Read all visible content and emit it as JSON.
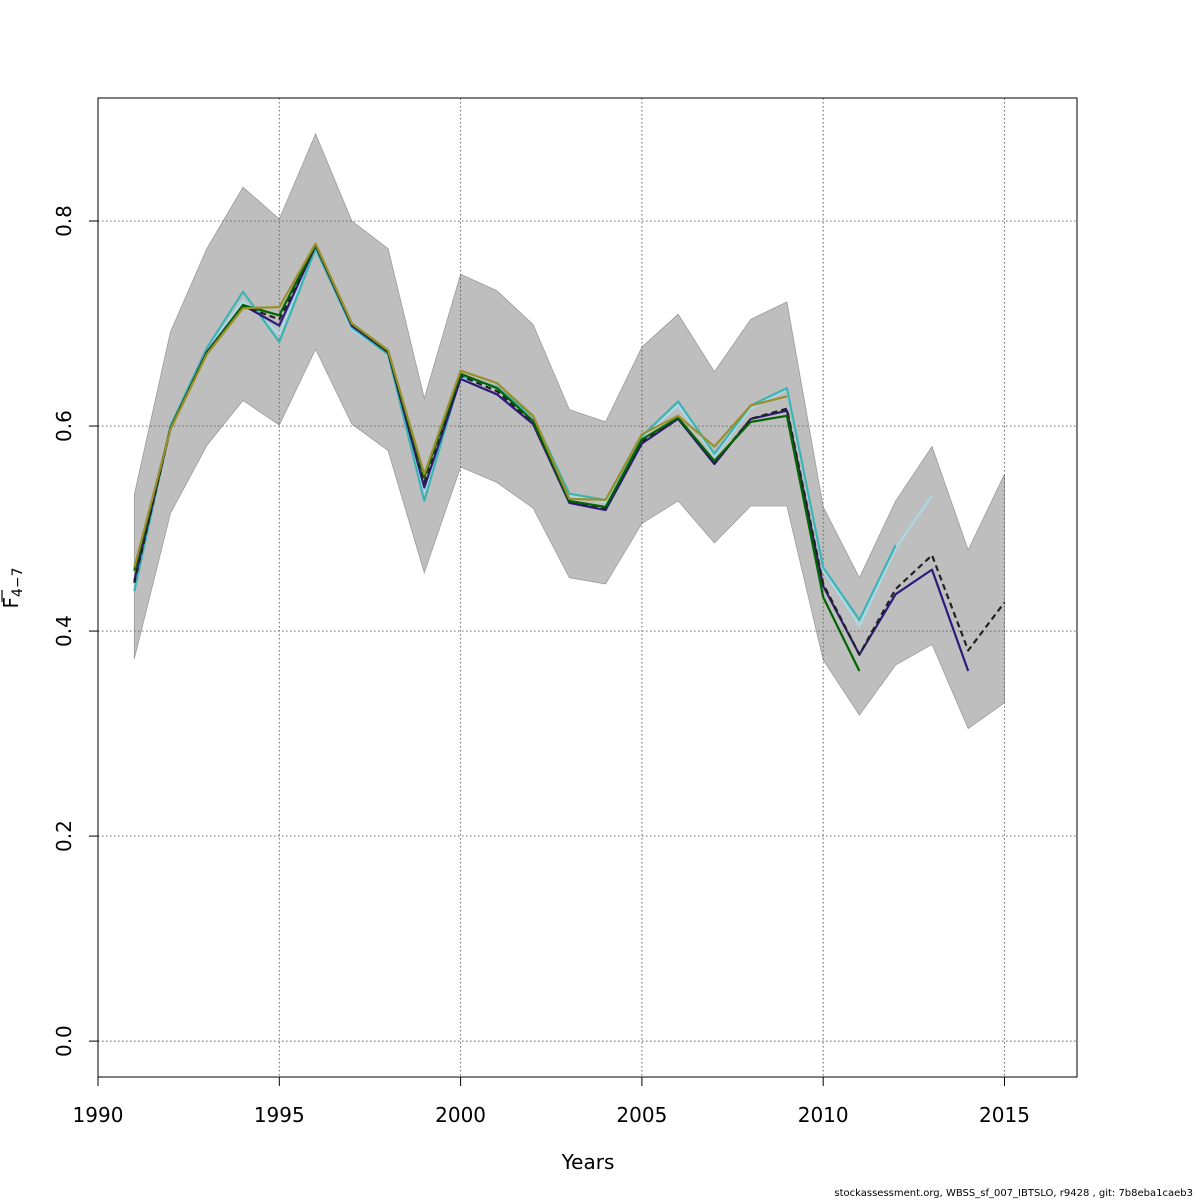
{
  "chart_data": {
    "type": "line",
    "xlabel": "Years",
    "ylabel_main": "F",
    "ylabel_sub": "4−7",
    "xlim": [
      1990,
      2017
    ],
    "ylim": [
      -0.035,
      0.92
    ],
    "x_ticks": [
      1990,
      1995,
      2000,
      2005,
      2010,
      2015
    ],
    "y_ticks": [
      0.0,
      0.2,
      0.4,
      0.6,
      0.8
    ],
    "x_tick_labels": [
      "1990",
      "1995",
      "2000",
      "2005",
      "2010",
      "2015"
    ],
    "y_tick_labels": [
      "0.0",
      "0.2",
      "0.4",
      "0.6",
      "0.8"
    ],
    "grid": true,
    "band": {
      "color": "#bebebe",
      "x": [
        1991,
        1992,
        1993,
        1994,
        1995,
        1996,
        1997,
        1998,
        1999,
        2000,
        2001,
        2002,
        2003,
        2004,
        2005,
        2006,
        2007,
        2008,
        2009,
        2010,
        2011,
        2012,
        2013,
        2014,
        2015
      ],
      "upper": [
        0.533,
        0.692,
        0.773,
        0.833,
        0.802,
        0.885,
        0.8,
        0.773,
        0.627,
        0.748,
        0.732,
        0.699,
        0.616,
        0.604,
        0.677,
        0.709,
        0.653,
        0.704,
        0.721,
        0.521,
        0.452,
        0.527,
        0.58,
        0.479,
        0.553
      ],
      "lower": [
        0.373,
        0.515,
        0.581,
        0.625,
        0.601,
        0.675,
        0.602,
        0.576,
        0.457,
        0.56,
        0.545,
        0.52,
        0.452,
        0.446,
        0.505,
        0.527,
        0.486,
        0.522,
        0.522,
        0.372,
        0.318,
        0.367,
        0.387,
        0.305,
        0.33
      ]
    },
    "series": [
      {
        "color": "#add8e6",
        "width": 2.2,
        "dash": "",
        "x": [
          1991,
          1992,
          1993,
          1994,
          1995,
          1996,
          1997,
          1998,
          1999,
          2000,
          2001,
          2002,
          2003,
          2004,
          2005,
          2006,
          2007,
          2008,
          2009,
          2010,
          2011,
          2012,
          2013
        ],
        "y": [
          0.443,
          0.6,
          0.674,
          0.722,
          0.69,
          0.775,
          0.694,
          0.671,
          0.536,
          0.648,
          0.637,
          0.607,
          0.532,
          0.526,
          0.589,
          0.62,
          0.571,
          0.617,
          0.636,
          0.46,
          0.405,
          0.481,
          0.532
        ]
      },
      {
        "color": "#3cb4b4",
        "width": 2.2,
        "dash": "",
        "x": [
          1991,
          1992,
          1993,
          1994,
          1995,
          1996,
          1997,
          1998,
          1999,
          2000,
          2001,
          2002,
          2003,
          2004,
          2005,
          2006,
          2007,
          2008,
          2009,
          2010,
          2011,
          2012
        ],
        "y": [
          0.439,
          0.6,
          0.676,
          0.731,
          0.682,
          0.773,
          0.696,
          0.67,
          0.527,
          0.649,
          0.638,
          0.609,
          0.534,
          0.528,
          0.59,
          0.624,
          0.573,
          0.62,
          0.637,
          0.462,
          0.411,
          0.484
        ]
      },
      {
        "color": "#2e1a7a",
        "width": 2.2,
        "dash": "",
        "x": [
          1991,
          1992,
          1993,
          1994,
          1995,
          1996,
          1997,
          1998,
          1999,
          2000,
          2001,
          2002,
          2003,
          2004,
          2005,
          2006,
          2007,
          2008,
          2009,
          2010,
          2011,
          2012,
          2013,
          2014
        ],
        "y": [
          0.449,
          0.598,
          0.672,
          0.718,
          0.698,
          0.776,
          0.698,
          0.672,
          0.54,
          0.646,
          0.631,
          0.602,
          0.525,
          0.518,
          0.583,
          0.607,
          0.563,
          0.607,
          0.615,
          0.444,
          0.377,
          0.436,
          0.46,
          0.361
        ]
      },
      {
        "color": "#222222",
        "width": 2.2,
        "dash": "6,4",
        "x": [
          1991,
          1992,
          1993,
          1994,
          1995,
          1996,
          1997,
          1998,
          1999,
          2000,
          2001,
          2002,
          2003,
          2004,
          2005,
          2006,
          2007,
          2008,
          2009,
          2010,
          2011,
          2012,
          2013,
          2014,
          2015
        ],
        "y": [
          0.447,
          0.598,
          0.672,
          0.717,
          0.704,
          0.776,
          0.699,
          0.672,
          0.545,
          0.649,
          0.634,
          0.604,
          0.526,
          0.52,
          0.585,
          0.608,
          0.564,
          0.607,
          0.617,
          0.446,
          0.377,
          0.441,
          0.474,
          0.381,
          0.428
        ]
      },
      {
        "color": "#006400",
        "width": 2.2,
        "dash": "",
        "x": [
          1991,
          1992,
          1993,
          1994,
          1995,
          1996,
          1997,
          1998,
          1999,
          2000,
          2001,
          2002,
          2003,
          2004,
          2005,
          2006,
          2007,
          2008,
          2009,
          2010,
          2011
        ],
        "y": [
          0.459,
          0.598,
          0.671,
          0.718,
          0.708,
          0.777,
          0.7,
          0.673,
          0.55,
          0.651,
          0.637,
          0.605,
          0.527,
          0.521,
          0.587,
          0.608,
          0.566,
          0.604,
          0.61,
          0.433,
          0.361
        ]
      },
      {
        "color": "#9b8f2a",
        "width": 2.2,
        "dash": "",
        "x": [
          1991,
          1992,
          1993,
          1994,
          1995,
          1996,
          1997,
          1998,
          1999,
          2000,
          2001,
          2002,
          2003,
          2004,
          2005,
          2006,
          2007,
          2008,
          2009
        ],
        "y": [
          0.462,
          0.597,
          0.67,
          0.715,
          0.716,
          0.778,
          0.7,
          0.674,
          0.553,
          0.654,
          0.642,
          0.61,
          0.529,
          0.528,
          0.592,
          0.61,
          0.58,
          0.62,
          0.629
        ]
      }
    ]
  },
  "footer": "stockassessment.org, WBSS_sf_007_IBTSLO, r9428 , git: 7b8eba1caeb3"
}
